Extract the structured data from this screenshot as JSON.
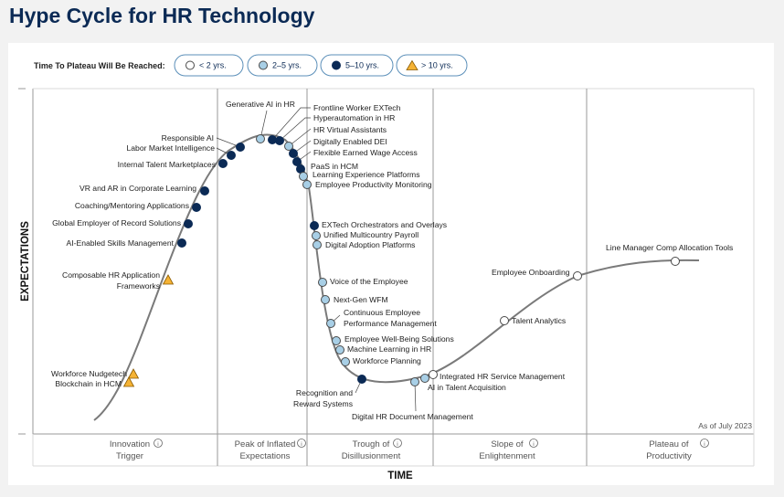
{
  "title": "Hype Cycle for HR Technology",
  "legend": {
    "title": "Time To Plateau Will Be Reached:",
    "items": [
      {
        "key": "lt2",
        "label": "< 2 yrs.",
        "fill": "#ffffff",
        "stroke": "#4a4a4a",
        "shape": "circle"
      },
      {
        "key": "2to5",
        "label": "2–5 yrs.",
        "fill": "#a8cfe6",
        "stroke": "#4a4a4a",
        "shape": "circle"
      },
      {
        "key": "5to10",
        "label": "5–10 yrs.",
        "fill": "#0b2a55",
        "stroke": "#0b2a55",
        "shape": "circle"
      },
      {
        "key": "gt10",
        "label": "> 10 yrs.",
        "fill": "#f5b335",
        "stroke": "#8a5a00",
        "shape": "triangle"
      }
    ]
  },
  "axes": {
    "y_label": "EXPECTATIONS",
    "x_label": "TIME"
  },
  "as_of": "As of July 2023",
  "phases": [
    {
      "line1": "Innovation",
      "line2": "Trigger"
    },
    {
      "line1": "Peak of Inflated",
      "line2": "Expectations"
    },
    {
      "line1": "Trough of",
      "line2": "Disillusionment"
    },
    {
      "line1": "Slope of",
      "line2": "Enlightenment"
    },
    {
      "line1": "Plateau of",
      "line2": "Productivity"
    }
  ],
  "colors": {
    "brand": "#0b2a55",
    "curve": "#7a7a7a",
    "divider": "#9a9a9a",
    "legend_border": "#5b8fb9"
  },
  "technologies": [
    {
      "name": "Workforce Nudgetech",
      "cat": "gt10"
    },
    {
      "name": "Blockchain in HCM",
      "cat": "gt10"
    },
    {
      "name": "Composable HR Application Frameworks",
      "cat": "gt10"
    },
    {
      "name": "AI-Enabled Skills Management",
      "cat": "5to10"
    },
    {
      "name": "Global Employer of Record Solutions",
      "cat": "5to10"
    },
    {
      "name": "Coaching/Mentoring Applications",
      "cat": "5to10"
    },
    {
      "name": "VR and AR in Corporate Learning",
      "cat": "5to10"
    },
    {
      "name": "Internal Talent Marketplaces",
      "cat": "5to10"
    },
    {
      "name": "Labor Market Intelligence",
      "cat": "5to10"
    },
    {
      "name": "Responsible AI",
      "cat": "5to10"
    },
    {
      "name": "Generative AI in HR",
      "cat": "2to5"
    },
    {
      "name": "Frontline Worker EXTech",
      "cat": "5to10"
    },
    {
      "name": "Hyperautomation in HR",
      "cat": "5to10"
    },
    {
      "name": "HR Virtual Assistants",
      "cat": "2to5"
    },
    {
      "name": "Digitally Enabled DEI",
      "cat": "5to10"
    },
    {
      "name": "Flexible Earned Wage Access",
      "cat": "5to10"
    },
    {
      "name": "PaaS in HCM",
      "cat": "5to10"
    },
    {
      "name": "Learning Experience Platforms",
      "cat": "2to5"
    },
    {
      "name": "Employee Productivity Monitoring",
      "cat": "2to5"
    },
    {
      "name": "EXTech Orchestrators and Overlays",
      "cat": "5to10"
    },
    {
      "name": "Unified Multicountry Payroll",
      "cat": "2to5"
    },
    {
      "name": "Digital Adoption Platforms",
      "cat": "2to5"
    },
    {
      "name": "Voice of the Employee",
      "cat": "2to5"
    },
    {
      "name": "Next-Gen WFM",
      "cat": "2to5"
    },
    {
      "name": "Continuous Employee Performance Management",
      "cat": "2to5"
    },
    {
      "name": "Employee Well-Being Solutions",
      "cat": "2to5"
    },
    {
      "name": "Machine Learning in HR",
      "cat": "2to5"
    },
    {
      "name": "Workforce Planning",
      "cat": "2to5"
    },
    {
      "name": "Recognition and Reward Systems",
      "cat": "5to10"
    },
    {
      "name": "Digital HR Document Management",
      "cat": "2to5"
    },
    {
      "name": "AI in Talent Acquisition",
      "cat": "2to5"
    },
    {
      "name": "Integrated HR Service Management",
      "cat": "lt2"
    },
    {
      "name": "Talent Analytics",
      "cat": "lt2"
    },
    {
      "name": "Employee Onboarding",
      "cat": "lt2"
    },
    {
      "name": "Line Manager Comp Allocation Tools",
      "cat": "lt2"
    }
  ]
}
